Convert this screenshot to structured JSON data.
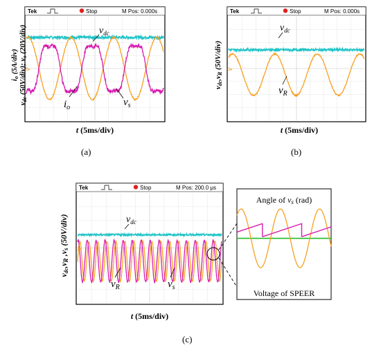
{
  "colors": {
    "vdc": "#21c4c8",
    "vs": "#f7a020",
    "io": "#d81bb0",
    "vR": "#f7a020",
    "angle": "#d81bb0",
    "zero_line": "#22bb22",
    "stop_dot": "#e02020",
    "scope_bg": "#ffffff",
    "scope_border": "#000000"
  },
  "chart_data": [
    {
      "type": "line",
      "panel": "a",
      "caption": "(a)",
      "header": {
        "brand": "Tek",
        "status": "Stop",
        "position": "M Pos: 0.000s"
      },
      "ylabel": "i_o (5A/div)  v_dc (50V/div); v_s (20V/div)",
      "xlabel": "t (5ms/div)",
      "series": [
        {
          "name": "v_dc",
          "label": "v",
          "sub": "dc",
          "color_key": "vdc",
          "shape": "dc",
          "level": 0.8,
          "ripple": 0.012
        },
        {
          "name": "v_s",
          "label": "v",
          "sub": "s",
          "color_key": "vs",
          "shape": "sine",
          "amplitude": 0.3,
          "offset": 0.5,
          "cycles": 3.2,
          "phase": 1.3
        },
        {
          "name": "i_o",
          "label": "i",
          "sub": "o",
          "color_key": "io",
          "shape": "distorted-sine",
          "amplitude": 0.3,
          "offset": 0.5,
          "cycles": 3.2,
          "phase": 4.44
        }
      ]
    },
    {
      "type": "line",
      "panel": "b",
      "caption": "(b)",
      "header": {
        "brand": "Tek",
        "status": "Stop",
        "position": "M Pos: 0.000s"
      },
      "ylabel": "v_dc, v_R (50V/div)",
      "xlabel": "t (5ms/div)",
      "series": [
        {
          "name": "v_dc",
          "label": "v",
          "sub": "dc",
          "color_key": "vdc",
          "shape": "dc",
          "level": 0.68,
          "ripple": 0.01
        },
        {
          "name": "v_R",
          "label": "v",
          "sub": "R",
          "color_key": "vR",
          "shape": "sine",
          "amplitude": 0.2,
          "offset": 0.44,
          "cycles": 3.2,
          "phase": 1.0
        }
      ]
    },
    {
      "type": "line",
      "panel": "c",
      "caption": "(c)",
      "header": {
        "brand": "Tek",
        "status": "Stop",
        "position": "M Pos: 200.0 μs"
      },
      "ylabel": "v_dc, v_R, v_s (50V/div)",
      "xlabel": "t (5ms/div)",
      "series": [
        {
          "name": "v_dc",
          "label": "v",
          "sub": "dc",
          "color_key": "vdc",
          "shape": "dc",
          "level": 0.62,
          "ripple": 0.008
        },
        {
          "name": "v_R",
          "label": "v",
          "sub": "R",
          "color_key": "vR",
          "shape": "sine",
          "amplitude": 0.18,
          "offset": 0.38,
          "cycles": 16,
          "phase": 0.0
        },
        {
          "name": "v_s",
          "label": "v",
          "sub": "s",
          "color_key": "io",
          "shape": "sine",
          "amplitude": 0.19,
          "offset": 0.38,
          "cycles": 16,
          "phase": 1.2
        }
      ],
      "zoom_inset": {
        "labels": {
          "angle": "Angle of v_s (rad)",
          "voltage": "Voltage of SPEER"
        },
        "cycles": 2.4
      }
    }
  ]
}
